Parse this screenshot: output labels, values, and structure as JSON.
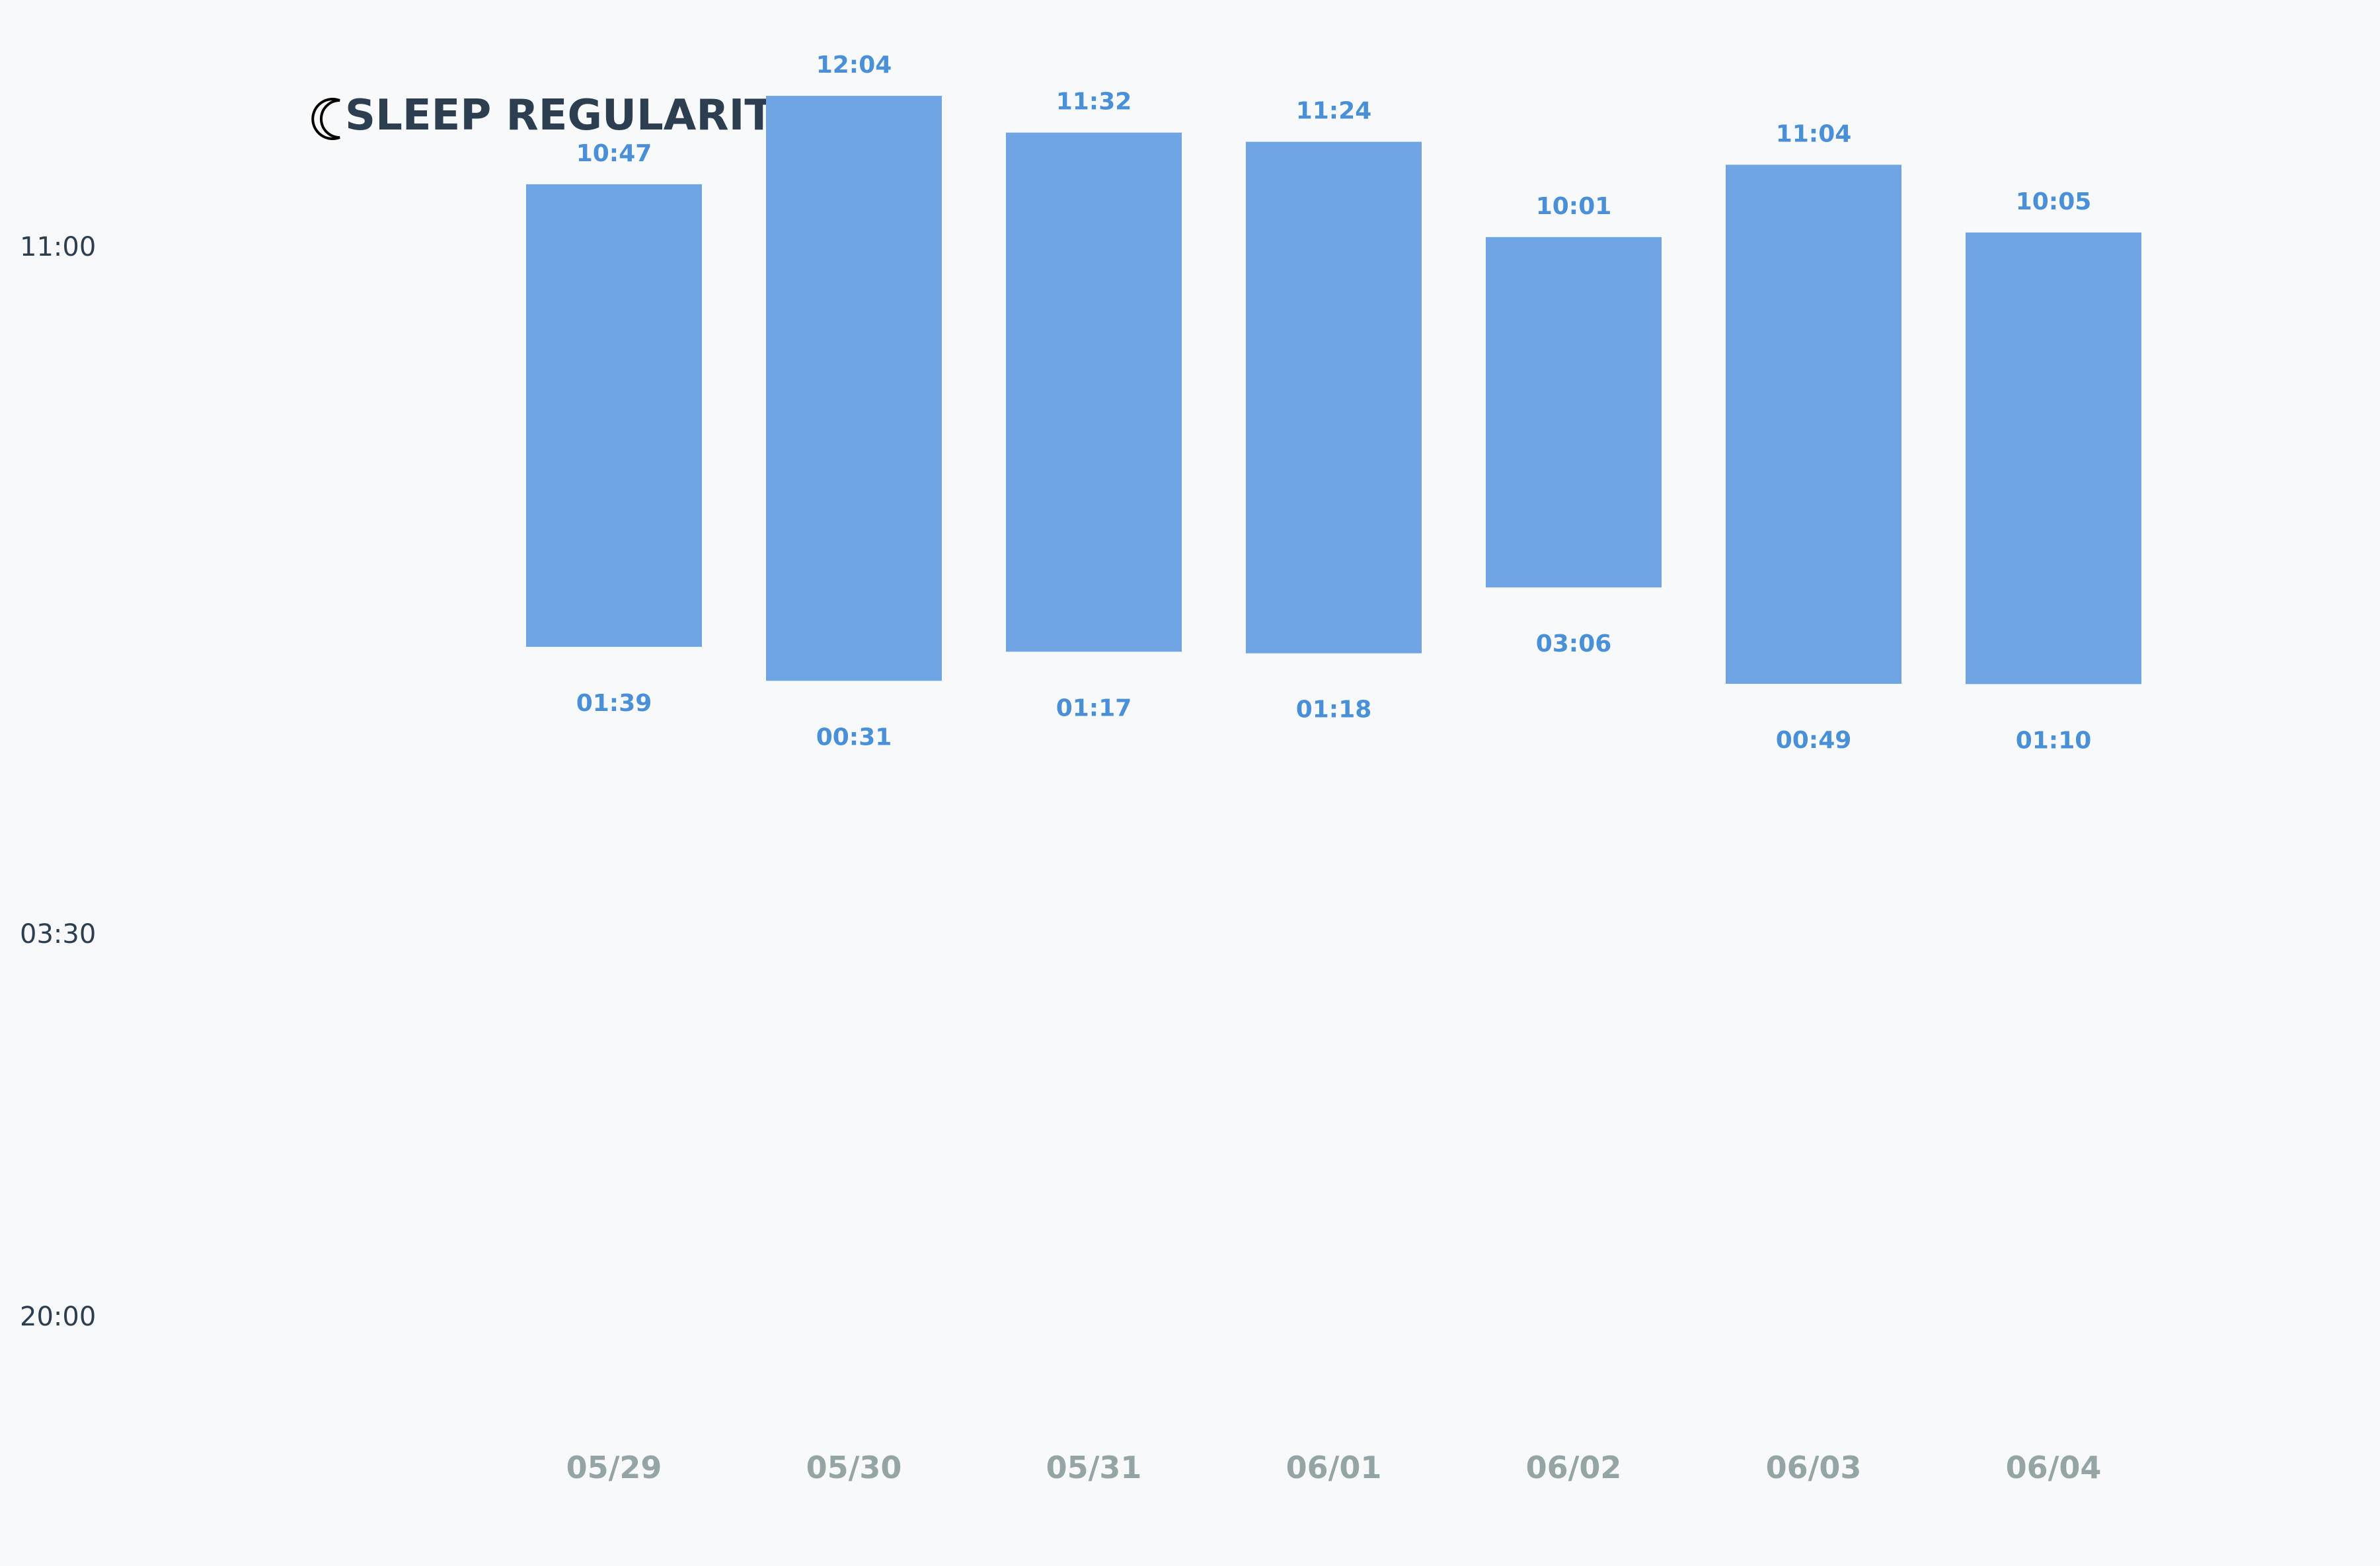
{
  "chart_data": {
    "type": "bar",
    "subtype": "floating-range",
    "title": "SLEEP REGULARITY",
    "title_icon": "moon-icon",
    "categories": [
      "05/29",
      "05/30",
      "05/31",
      "06/01",
      "06/02",
      "06/03",
      "06/04"
    ],
    "series": [
      {
        "start_labels": [
          "01:39",
          "00:31",
          "01:17",
          "01:18",
          "03:06",
          "00:49",
          "01:10"
        ],
        "end_labels": [
          "10:47",
          "12:04",
          "11:32",
          "11:24",
          "10:01",
          "11:04",
          "10:05"
        ]
      }
    ],
    "y_ticks": [
      "11:00",
      "03:30",
      "20:00"
    ],
    "grid": false,
    "legend": false,
    "colors": {
      "background": "#f7f9fb",
      "bar": "#6fa5e5",
      "value_label": "#4a90d9",
      "title": "#2c3e50",
      "y_tick": "#2c3e50",
      "x_tick": "#95a5a6"
    }
  }
}
